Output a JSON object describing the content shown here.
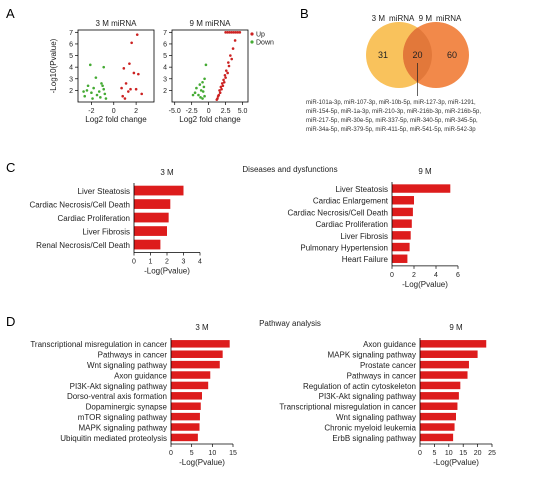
{
  "panels": {
    "A": "A",
    "B": "B",
    "C": "C",
    "D": "D"
  },
  "sections": {
    "C": "Diseases and dysfunctions",
    "D": "Pathway analysis"
  },
  "chart_data": [
    {
      "id": "volcano_3m",
      "type": "scatter",
      "title": "3 M   miRNA",
      "xlabel": "Log2 fold change",
      "ylabel": "-Log10(Pvalue)",
      "xlim": [
        -3.2,
        3.6
      ],
      "ylim": [
        1,
        7.2
      ],
      "xticks": [
        "-2",
        "0",
        "2"
      ],
      "yticks": [
        "2",
        "3",
        "4",
        "5",
        "6",
        "7"
      ],
      "grid": false,
      "series": [
        {
          "name": "Up",
          "color": "#cc2222",
          "points": [
            [
              2.1,
              6.8
            ],
            [
              1.6,
              6.1
            ],
            [
              1.4,
              4.3
            ],
            [
              0.9,
              3.9
            ],
            [
              1.8,
              3.5
            ],
            [
              2.2,
              3.4
            ],
            [
              1.1,
              2.6
            ],
            [
              0.7,
              2.2
            ],
            [
              1.5,
              2.1
            ],
            [
              2.0,
              2.1
            ],
            [
              1.3,
              1.9
            ],
            [
              0.8,
              1.5
            ],
            [
              2.5,
              1.7
            ],
            [
              1.0,
              1.3
            ]
          ]
        },
        {
          "name": "Down",
          "color": "#44aa33",
          "points": [
            [
              -2.1,
              4.2
            ],
            [
              -1.6,
              3.1
            ],
            [
              -0.9,
              4.0
            ],
            [
              -1.1,
              2.6
            ],
            [
              -2.3,
              2.4
            ],
            [
              -1.8,
              2.2
            ],
            [
              -0.9,
              2.1
            ],
            [
              -1.3,
              1.9
            ],
            [
              -2.0,
              1.8
            ],
            [
              -0.8,
              1.7
            ],
            [
              -1.5,
              1.6
            ],
            [
              -2.6,
              1.5
            ],
            [
              -1.2,
              1.4
            ],
            [
              -0.7,
              1.3
            ],
            [
              -1.9,
              1.3
            ],
            [
              -2.4,
              2.0
            ],
            [
              -1.0,
              2.4
            ],
            [
              -2.7,
              1.9
            ]
          ]
        }
      ]
    },
    {
      "id": "volcano_9m",
      "type": "scatter",
      "title": "9 M   miRNA",
      "xlabel": "Log2 fold change",
      "ylabel": "",
      "xlim": [
        -5.4,
        5.8
      ],
      "ylim": [
        1,
        7.2
      ],
      "xticks": [
        "-5.0",
        "-2.5",
        "0",
        "2.5",
        "5.0"
      ],
      "yticks": [
        "2",
        "3",
        "4",
        "5",
        "6",
        "7"
      ],
      "grid": false,
      "legend": [
        {
          "name": "Up",
          "color": "#cc2222"
        },
        {
          "name": "Down",
          "color": "#44aa33"
        }
      ],
      "series": [
        {
          "name": "Up",
          "color": "#cc2222",
          "points": [
            [
              2.5,
              7.0
            ],
            [
              2.8,
              7.0
            ],
            [
              3.1,
              7.0
            ],
            [
              3.4,
              7.0
            ],
            [
              3.7,
              7.0
            ],
            [
              4.0,
              7.0
            ],
            [
              4.3,
              7.0
            ],
            [
              4.6,
              7.0
            ],
            [
              3.9,
              6.3
            ],
            [
              3.6,
              5.6
            ],
            [
              3.2,
              5.0
            ],
            [
              3.4,
              4.7
            ],
            [
              2.9,
              4.4
            ],
            [
              3.0,
              4.1
            ],
            [
              2.6,
              3.7
            ],
            [
              2.8,
              3.5
            ],
            [
              2.4,
              3.3
            ],
            [
              2.5,
              3.1
            ],
            [
              2.2,
              2.9
            ],
            [
              2.3,
              2.7
            ],
            [
              2.0,
              2.6
            ],
            [
              2.1,
              2.4
            ],
            [
              1.8,
              2.3
            ],
            [
              1.9,
              2.1
            ],
            [
              1.6,
              2.0
            ],
            [
              1.7,
              1.8
            ],
            [
              1.5,
              1.6
            ],
            [
              1.4,
              1.5
            ],
            [
              1.3,
              1.3
            ],
            [
              1.2,
              1.2
            ]
          ]
        },
        {
          "name": "Down",
          "color": "#44aa33",
          "points": [
            [
              -0.4,
              4.2
            ],
            [
              -0.6,
              3.0
            ],
            [
              -0.9,
              2.7
            ],
            [
              -1.3,
              2.5
            ],
            [
              -0.7,
              2.3
            ],
            [
              -1.8,
              2.2
            ],
            [
              -1.1,
              2.0
            ],
            [
              -0.8,
              1.9
            ],
            [
              -2.0,
              1.8
            ],
            [
              -1.5,
              1.6
            ],
            [
              -0.6,
              1.5
            ],
            [
              -1.2,
              1.4
            ],
            [
              -2.3,
              1.6
            ],
            [
              -0.9,
              1.3
            ]
          ]
        }
      ]
    },
    {
      "id": "venn",
      "type": "venn",
      "sets": [
        {
          "label": "3 M",
          "unique": "31",
          "color": "#f9c25c"
        },
        {
          "label": "9 M",
          "unique": "60",
          "color": "#f2894a"
        }
      ],
      "intersection": "20",
      "header": "miRNA",
      "overlap_color": "#e2783a",
      "list_lines": [
        "miR-101a-3p, miR-107-3p, miR-10b-5p, miR-127-3p, miR-1291,",
        "miR-154-5p, miR-1a-3p, miR-210-3p, miR-216b-3p, miR-216b-5p,",
        "miR-217-5p, miR-30e-5p, miR-337-5p, miR-340-5p, miR-345-5p,",
        "miR-34a-5p, miR-379-5p, miR-411-5p, miR-541-5p, miR-542-3p"
      ]
    },
    {
      "id": "disease_3m",
      "type": "bar",
      "title": "3 M",
      "xlabel": "-Log(Pvalue)",
      "categories": [
        "Liver Steatosis",
        "Cardiac Necrosis/Cell Death",
        "Cardiac Proliferation",
        "Liver Fibrosis",
        "Renal Necrosis/Cell Death"
      ],
      "values": [
        3.0,
        2.2,
        2.1,
        2.0,
        1.6
      ],
      "xlim": [
        0,
        4
      ],
      "xticks": [
        0,
        1,
        2,
        3,
        4
      ],
      "color": "#dd1c1c"
    },
    {
      "id": "disease_9m",
      "type": "bar",
      "title": "9 M",
      "xlabel": "-Log(Pvalue)",
      "categories": [
        "Liver Steatosis",
        "Cardiac Enlargement",
        "Cardiac Necrosis/Cell Death",
        "Cardiac Proliferation",
        "Liver Fibrosis",
        "Pulmonary Hypertension",
        "Heart Failure"
      ],
      "values": [
        5.3,
        2.0,
        1.9,
        1.8,
        1.7,
        1.6,
        1.4
      ],
      "xlim": [
        0,
        6
      ],
      "xticks": [
        0,
        2,
        4,
        6
      ],
      "color": "#dd1c1c"
    },
    {
      "id": "pathway_3m",
      "type": "bar",
      "title": "3 M",
      "xlabel": "-Log(Pvalue)",
      "categories": [
        "Transcriptional misregulation in cancer",
        "Pathways in cancer",
        "Wnt signaling pathway",
        "Axon guidance",
        "PI3K-Akt signaling pathway",
        "Dorso-ventral axis formation",
        "Dopaminergic synapse",
        "mTOR signaling pathway",
        "MAPK signaling pathway",
        "Ubiquitin mediated proteolysis"
      ],
      "values": [
        14.2,
        12.5,
        11.8,
        9.5,
        9.0,
        7.5,
        7.2,
        7.0,
        6.9,
        6.5
      ],
      "xlim": [
        0,
        15
      ],
      "xticks": [
        0,
        5,
        10,
        15
      ],
      "color": "#dd1c1c"
    },
    {
      "id": "pathway_9m",
      "type": "bar",
      "title": "9 M",
      "xlabel": "-Log(Pvalue)",
      "categories": [
        "Axon guidance",
        "MAPK signaling pathway",
        "Prostate cancer",
        "Pathways in cancer",
        "Regulation of actin cytoskeleton",
        "PI3K-Akt signaling pathway",
        "Transcriptional misregulation in cancer",
        "Wnt signaling pathway",
        "Chronic myeloid leukemia",
        "ErbB signaling pathway"
      ],
      "values": [
        23,
        20,
        17,
        16.5,
        14,
        13.5,
        13,
        12.5,
        12,
        11.5
      ],
      "xlim": [
        0,
        25
      ],
      "xticks": [
        0,
        5,
        10,
        15,
        20,
        25
      ],
      "color": "#dd1c1c"
    }
  ]
}
